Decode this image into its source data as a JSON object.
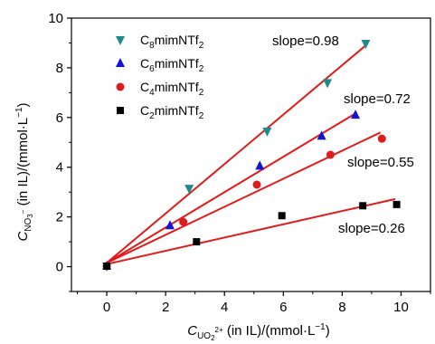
{
  "chart_data": {
    "type": "scatter",
    "xlabel": "C_UO2²⁺ (in IL)/(mmol·L⁻¹)",
    "ylabel": "C_NO3⁻ (in IL)/(mmol·L⁻¹)",
    "xlim": [
      -1.2,
      11
    ],
    "ylim": [
      -1,
      10
    ],
    "x_ticks": [
      0,
      2,
      4,
      6,
      8,
      10
    ],
    "y_ticks": [
      0,
      2,
      4,
      6,
      8,
      10
    ],
    "legend_position": "top-left",
    "series": [
      {
        "name": "C8mimNTf2",
        "color": "#1f8a8a",
        "marker": "triangle-down",
        "points": [
          [
            0,
            0.02
          ],
          [
            2.8,
            3.15
          ],
          [
            5.45,
            5.45
          ],
          [
            7.5,
            7.4
          ],
          [
            8.8,
            8.98
          ]
        ],
        "fit": [
          [
            0,
            0.15
          ],
          [
            8.85,
            8.95
          ]
        ],
        "slope_label": "slope=0.98"
      },
      {
        "name": "C6mimNTf2",
        "color": "#1414d4",
        "marker": "triangle-up",
        "points": [
          [
            0,
            0.02
          ],
          [
            2.15,
            1.65
          ],
          [
            5.2,
            4.05
          ],
          [
            7.3,
            5.25
          ],
          [
            8.45,
            6.1
          ]
        ],
        "fit": [
          [
            0,
            0.15
          ],
          [
            8.5,
            6.2
          ]
        ],
        "slope_label": "slope=0.72"
      },
      {
        "name": "C4mimNTf2",
        "color": "#e01b1b",
        "marker": "circle",
        "points": [
          [
            0,
            0.02
          ],
          [
            2.6,
            1.8
          ],
          [
            5.1,
            3.3
          ],
          [
            7.6,
            4.5
          ],
          [
            9.35,
            5.15
          ]
        ],
        "fit": [
          [
            0,
            0.15
          ],
          [
            9.3,
            5.4
          ]
        ],
        "slope_label": "slope=0.55"
      },
      {
        "name": "C2mimNTf2",
        "color": "#000000",
        "marker": "square",
        "points": [
          [
            0,
            0.02
          ],
          [
            3.05,
            1.0
          ],
          [
            5.95,
            2.05
          ],
          [
            8.7,
            2.45
          ],
          [
            9.85,
            2.5
          ]
        ],
        "fit": [
          [
            0,
            0.1
          ],
          [
            9.8,
            2.72
          ]
        ],
        "slope_label": "slope=0.26"
      }
    ],
    "fit_line_color": "#e01b1b"
  }
}
